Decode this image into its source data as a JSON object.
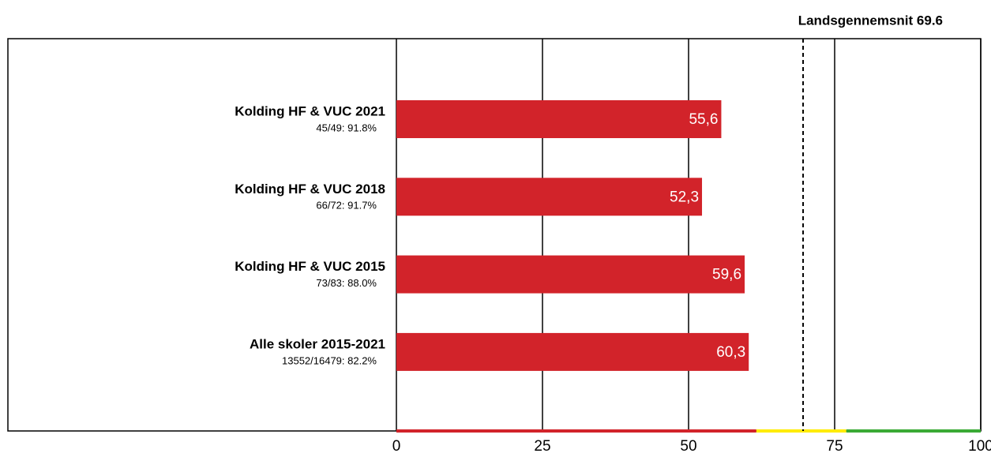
{
  "chart_data": {
    "type": "bar",
    "orientation": "horizontal",
    "categories": [
      "Kolding HF & VUC 2021",
      "Kolding HF & VUC 2018",
      "Kolding HF & VUC 2015",
      "Alle skoler 2015-2021"
    ],
    "sublabels": [
      "45/49: 91.8%",
      "66/72: 91.7%",
      "73/83: 88.0%",
      "13552/16479: 82.2%"
    ],
    "values": [
      55.6,
      52.3,
      59.6,
      60.3
    ],
    "value_labels": [
      "55,6",
      "52,3",
      "59,6",
      "60,3"
    ],
    "color": "#d2232a",
    "xlim": [
      0,
      100
    ],
    "xticks": [
      0,
      25,
      50,
      75,
      100
    ],
    "grid": true,
    "reference_line": {
      "label": "Landsgennemsnit 69.6",
      "value": 69.6
    },
    "bands": [
      {
        "from": 0,
        "to": 61.6,
        "color": "#d2232a"
      },
      {
        "from": 61.6,
        "to": 77,
        "color": "#ffec00"
      },
      {
        "from": 77,
        "to": 100,
        "color": "#3aaa35"
      }
    ]
  }
}
